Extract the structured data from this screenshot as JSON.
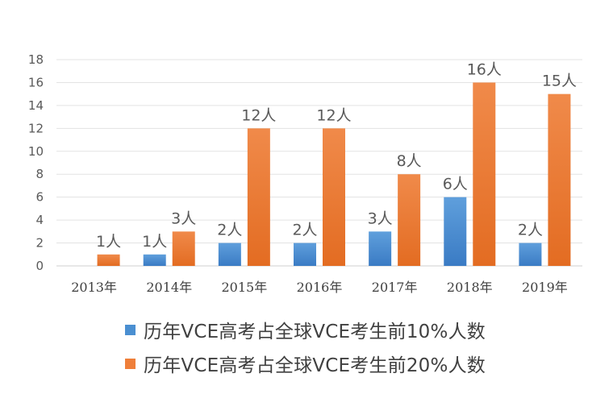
{
  "chart_data": {
    "type": "bar",
    "categories": [
      "2013年",
      "2014年",
      "2015年",
      "2016年",
      "2017年",
      "2018年",
      "2019年"
    ],
    "series": [
      {
        "name": "历年VCE高考占全球VCE考生前10%人数",
        "values": [
          null,
          1,
          2,
          2,
          3,
          6,
          2
        ],
        "labels": [
          "",
          "1人",
          "2人",
          "2人",
          "3人",
          "6人",
          "2人"
        ],
        "color": "#4a8fd1"
      },
      {
        "name": "历年VCE高考占全球VCE考生前20%人数",
        "values": [
          1,
          3,
          12,
          12,
          8,
          16,
          15
        ],
        "labels": [
          "1人",
          "3人",
          "12人",
          "12人",
          "8人",
          "16人",
          "15人"
        ],
        "color": "#ef7f3a"
      }
    ],
    "yticks": [
      "0",
      "2",
      "4",
      "6",
      "8",
      "10",
      "12",
      "14",
      "16",
      "18"
    ],
    "ylim": [
      0,
      18
    ],
    "grid": true,
    "legend_position": "bottom"
  }
}
